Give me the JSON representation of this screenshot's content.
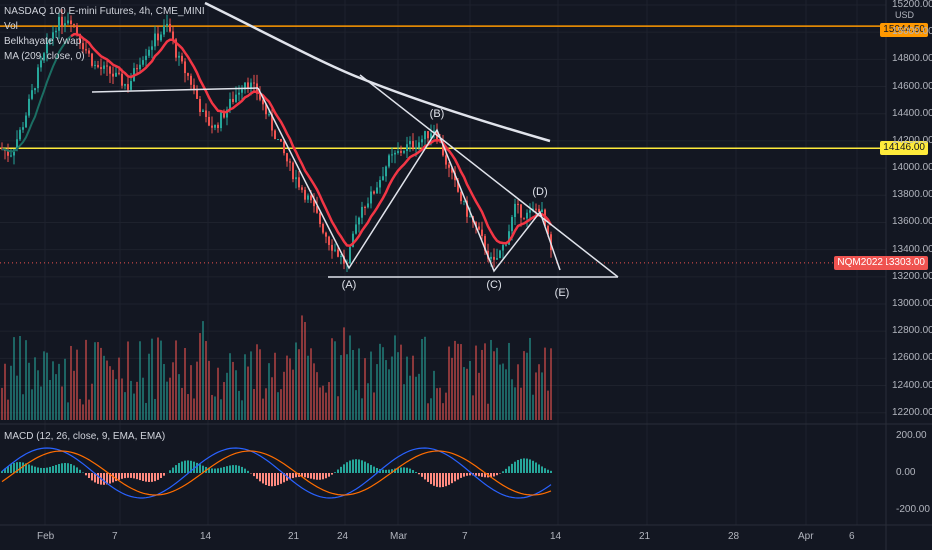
{
  "header": {
    "title": "NASDAQ 100 E-mini Futures, 4h, CME_MINI",
    "indicators": [
      "Vol",
      "Belkhayate Vwap",
      "MA (209, close, 0)"
    ],
    "currency": "USD"
  },
  "macd_legend": "MACD (12, 26, close, 9, EMA, EMA)",
  "price_labels": {
    "top_line": "15044.50",
    "mid_line": "14146.00",
    "current": "13303.00",
    "symbol_tag": "NQM2022"
  },
  "price_axis": [
    "15200.00",
    "15000.00",
    "14800.00",
    "14600.00",
    "14400.00",
    "14200.00",
    "14000.00",
    "13800.00",
    "13600.00",
    "13400.00",
    "13200.00",
    "13000.00",
    "12800.00",
    "12600.00",
    "12400.00",
    "12200.00"
  ],
  "macd_axis": [
    "200.00",
    "0.00",
    "-200.00"
  ],
  "time_axis": [
    "Feb",
    "7",
    "14",
    "21",
    "24",
    "Mar",
    "7",
    "14",
    "21",
    "28",
    "Apr",
    "6"
  ],
  "wave_labels": [
    "(A)",
    "(B)",
    "(C)",
    "(D)",
    "(E)"
  ],
  "colors": {
    "bg": "#131722",
    "up": "#26a69a",
    "down": "#ef5350",
    "orange_line": "#ff9800",
    "yellow_line": "#ffeb3b",
    "ma": "#e0e3eb",
    "vwap_red": "#f23645",
    "vwap_teal": "#1b6e63",
    "macd_line": "#2962ff",
    "signal_line": "#ff6d00"
  }
}
